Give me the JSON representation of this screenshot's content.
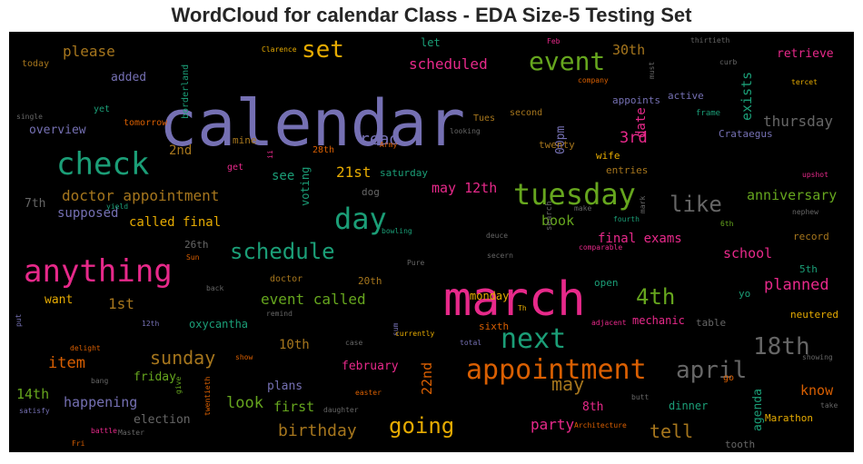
{
  "chart_data": {
    "type": "wordcloud",
    "title": "WordCloud for calendar Class - EDA Size-5 Testing Set",
    "background": "#000000",
    "palette": [
      "#7570b3",
      "#e7298a",
      "#1b9e77",
      "#d95f02",
      "#66a61e",
      "#e6ab02",
      "#a6761d",
      "#666666"
    ],
    "words": [
      {
        "text": "calendar",
        "color": "#7570b3"
      },
      {
        "text": "march",
        "color": "#e7298a"
      },
      {
        "text": "anything",
        "color": "#e7298a"
      },
      {
        "text": "appointment",
        "color": "#d95f02"
      },
      {
        "text": "check",
        "color": "#1b9e77"
      },
      {
        "text": "tuesday",
        "color": "#66a61e"
      },
      {
        "text": "day",
        "color": "#1b9e77"
      },
      {
        "text": "set",
        "color": "#e6ab02"
      },
      {
        "text": "event",
        "color": "#66a61e"
      },
      {
        "text": "next",
        "color": "#1b9e77"
      },
      {
        "text": "18th",
        "color": "#666666"
      },
      {
        "text": "april",
        "color": "#666666"
      },
      {
        "text": "schedule",
        "color": "#1b9e77"
      },
      {
        "text": "going",
        "color": "#e6ab02"
      },
      {
        "text": "4th",
        "color": "#66a61e"
      },
      {
        "text": "like",
        "color": "#666666"
      },
      {
        "text": "sunday",
        "color": "#a6761d"
      },
      {
        "text": "doctor appointment",
        "color": "#a6761d"
      },
      {
        "text": "may",
        "color": "#a6761d"
      },
      {
        "text": "read",
        "color": "#7570b3"
      },
      {
        "text": "scheduled",
        "color": "#e7298a"
      },
      {
        "text": "please",
        "color": "#a6761d"
      },
      {
        "text": "birthday",
        "color": "#a6761d"
      },
      {
        "text": "tell",
        "color": "#a6761d"
      },
      {
        "text": "event called",
        "color": "#66a61e"
      },
      {
        "text": "planned",
        "color": "#e7298a"
      },
      {
        "text": "thursday",
        "color": "#666666"
      },
      {
        "text": "anniversary",
        "color": "#66a61e"
      },
      {
        "text": "3rd",
        "color": "#e7298a"
      },
      {
        "text": "may 12th",
        "color": "#e7298a"
      },
      {
        "text": "21st",
        "color": "#e6ab02"
      },
      {
        "text": "final exams",
        "color": "#e7298a"
      },
      {
        "text": "item",
        "color": "#d95f02"
      },
      {
        "text": "look",
        "color": "#66a61e"
      },
      {
        "text": "happening",
        "color": "#7570b3"
      },
      {
        "text": "party",
        "color": "#e7298a"
      },
      {
        "text": "called final",
        "color": "#e6ab02"
      },
      {
        "text": "supposed",
        "color": "#7570b3"
      },
      {
        "text": "book",
        "color": "#66a61e"
      },
      {
        "text": "school",
        "color": "#e7298a"
      },
      {
        "text": "know",
        "color": "#d95f02"
      },
      {
        "text": "first",
        "color": "#66a61e"
      },
      {
        "text": "14th",
        "color": "#66a61e"
      },
      {
        "text": "1st",
        "color": "#a6761d"
      },
      {
        "text": "10th",
        "color": "#a6761d"
      },
      {
        "text": "22nd",
        "color": "#d95f02"
      },
      {
        "text": "30th",
        "color": "#a6761d"
      },
      {
        "text": "exists",
        "color": "#1b9e77"
      },
      {
        "text": "2nd",
        "color": "#a6761d"
      },
      {
        "text": "date",
        "color": "#e7298a"
      },
      {
        "text": "00pm",
        "color": "#7570b3"
      },
      {
        "text": "overview",
        "color": "#7570b3"
      },
      {
        "text": "election",
        "color": "#666666"
      },
      {
        "text": "agenda",
        "color": "#1b9e77"
      },
      {
        "text": "see",
        "color": "#1b9e77"
      },
      {
        "text": "voting",
        "color": "#1b9e77"
      },
      {
        "text": "plans",
        "color": "#7570b3"
      },
      {
        "text": "february",
        "color": "#e7298a"
      },
      {
        "text": "monday",
        "color": "#e6ab02"
      },
      {
        "text": "want",
        "color": "#e6ab02"
      },
      {
        "text": "friday",
        "color": "#66a61e"
      },
      {
        "text": "8th",
        "color": "#e7298a"
      },
      {
        "text": "dinner",
        "color": "#1b9e77"
      },
      {
        "text": "added",
        "color": "#7570b3"
      },
      {
        "text": "retrieve",
        "color": "#e7298a"
      },
      {
        "text": "let",
        "color": "#1b9e77"
      },
      {
        "text": "7th",
        "color": "#666666"
      },
      {
        "text": "saturday",
        "color": "#1b9e77"
      },
      {
        "text": "mechanic",
        "color": "#e7298a"
      },
      {
        "text": "oxycantha",
        "color": "#1b9e77"
      },
      {
        "text": "26th",
        "color": "#666666"
      },
      {
        "text": "20th",
        "color": "#a6761d"
      },
      {
        "text": "mine",
        "color": "#a6761d"
      },
      {
        "text": "doctor",
        "color": "#a6761d"
      },
      {
        "text": "tooth",
        "color": "#666666"
      },
      {
        "text": "active",
        "color": "#7570b3"
      },
      {
        "text": "Crataegus",
        "color": "#7570b3"
      },
      {
        "text": "twenty",
        "color": "#a6761d"
      },
      {
        "text": "entries",
        "color": "#a6761d"
      },
      {
        "text": "wife",
        "color": "#e6ab02"
      },
      {
        "text": "dog",
        "color": "#666666"
      },
      {
        "text": "open",
        "color": "#1b9e77"
      },
      {
        "text": "sixth",
        "color": "#d95f02"
      },
      {
        "text": "neutered",
        "color": "#e6ab02"
      },
      {
        "text": "record",
        "color": "#a6761d"
      },
      {
        "text": "5th",
        "color": "#1b9e77"
      },
      {
        "text": "yo",
        "color": "#1b9e77"
      },
      {
        "text": "Marathon",
        "color": "#e6ab02"
      },
      {
        "text": "table",
        "color": "#666666"
      },
      {
        "text": "borderland",
        "color": "#1b9e77"
      },
      {
        "text": "tomorrow",
        "color": "#d95f02"
      },
      {
        "text": "yet",
        "color": "#1b9e77"
      },
      {
        "text": "appoints",
        "color": "#7570b3"
      },
      {
        "text": "second",
        "color": "#a6761d"
      },
      {
        "text": "Tues",
        "color": "#a6761d"
      },
      {
        "text": "frame",
        "color": "#1b9e77"
      },
      {
        "text": "28th",
        "color": "#d95f02"
      },
      {
        "text": "get",
        "color": "#e7298a"
      },
      {
        "text": "today",
        "color": "#a6761d"
      },
      {
        "text": "Clarence",
        "color": "#e6ab02"
      },
      {
        "text": "company",
        "color": "#d95f02"
      },
      {
        "text": "thirtieth",
        "color": "#666666"
      },
      {
        "text": "Feb",
        "color": "#e7298a"
      },
      {
        "text": "curb",
        "color": "#666666"
      },
      {
        "text": "tercet",
        "color": "#e6ab02"
      },
      {
        "text": "must",
        "color": "#666666"
      },
      {
        "text": "single",
        "color": "#666666"
      },
      {
        "text": "looking",
        "color": "#666666"
      },
      {
        "text": "Army",
        "color": "#d95f02"
      },
      {
        "text": "ii",
        "color": "#e7298a"
      },
      {
        "text": "yield",
        "color": "#1b9e77"
      },
      {
        "text": "make",
        "color": "#666666"
      },
      {
        "text": "fourth",
        "color": "#1b9e77"
      },
      {
        "text": "mark",
        "color": "#666666"
      },
      {
        "text": "6th",
        "color": "#66a61e"
      },
      {
        "text": "nephew",
        "color": "#666666"
      },
      {
        "text": "upshot",
        "color": "#e7298a"
      },
      {
        "text": "bowling",
        "color": "#1b9e77"
      },
      {
        "text": "deuce",
        "color": "#666666"
      },
      {
        "text": "search",
        "color": "#666666"
      },
      {
        "text": "comparable",
        "color": "#e7298a"
      },
      {
        "text": "secern",
        "color": "#666666"
      },
      {
        "text": "Pure",
        "color": "#666666"
      },
      {
        "text": "Sun",
        "color": "#d95f02"
      },
      {
        "text": "back",
        "color": "#666666"
      },
      {
        "text": "remind",
        "color": "#666666"
      },
      {
        "text": "12th",
        "color": "#7570b3"
      },
      {
        "text": "put",
        "color": "#7570b3"
      },
      {
        "text": "delight",
        "color": "#d95f02"
      },
      {
        "text": "show",
        "color": "#d95f02"
      },
      {
        "text": "case",
        "color": "#666666"
      },
      {
        "text": "sum",
        "color": "#7570b3"
      },
      {
        "text": "total",
        "color": "#7570b3"
      },
      {
        "text": "Th",
        "color": "#e6ab02"
      },
      {
        "text": "currently",
        "color": "#e6ab02"
      },
      {
        "text": "adjacent",
        "color": "#e7298a"
      },
      {
        "text": "showing",
        "color": "#666666"
      },
      {
        "text": "go",
        "color": "#d95f02"
      },
      {
        "text": "butt",
        "color": "#666666"
      },
      {
        "text": "take",
        "color": "#666666"
      },
      {
        "text": "bang",
        "color": "#666666"
      },
      {
        "text": "satisfy",
        "color": "#7570b3"
      },
      {
        "text": "give",
        "color": "#66a61e"
      },
      {
        "text": "twentieth",
        "color": "#d95f02"
      },
      {
        "text": "battle",
        "color": "#e7298a"
      },
      {
        "text": "Master",
        "color": "#666666"
      },
      {
        "text": "daughter",
        "color": "#666666"
      },
      {
        "text": "easter",
        "color": "#d95f02"
      },
      {
        "text": "Architecture",
        "color": "#d95f02"
      },
      {
        "text": "Fri",
        "color": "#d95f02"
      }
    ]
  }
}
